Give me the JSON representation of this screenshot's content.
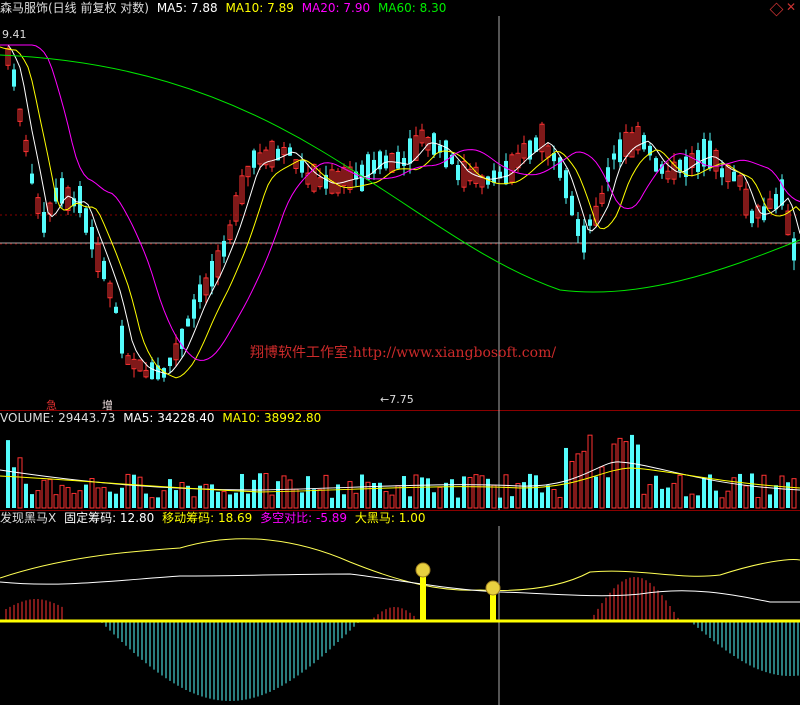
{
  "price_header": {
    "title": "森马服饰(日线 前复权 对数)",
    "ma5": "MA5: 7.88",
    "ma10": "MA10: 7.89",
    "ma20": "MA20: 7.90",
    "ma60": "MA60: 8.30"
  },
  "volume_header": {
    "volume": "VOLUME: 29443.73",
    "ma5": "MA5: 34228.40",
    "ma10": "MA10: 38992.80"
  },
  "indicator_header": {
    "name": "发现黑马X",
    "fixed": "固定筹码: 12.80",
    "moving": "移动筹码: 18.69",
    "longshort": "多空对比: -5.89",
    "darkhorse": "大黑马: 1.00"
  },
  "annotations": {
    "high": "9.41",
    "low": "←7.75",
    "watermark": "翔博软件工作室:http://www.xiangbosoft.com/",
    "tag_a": "急",
    "tag_b": "增"
  },
  "controls": {
    "diamond_icon": "diamond-icon",
    "close_icon": "close-icon",
    "close_glyph": "✕"
  },
  "colors": {
    "up": "#ff3232",
    "down": "#54fcfc",
    "ma5": "#ffffff",
    "ma10": "#ffff00",
    "ma20": "#ff00ff",
    "ma60": "#00e600",
    "grid": "#8a0000",
    "hist_pos": "#ff3232",
    "hist_neg": "#54fcfc"
  }
}
